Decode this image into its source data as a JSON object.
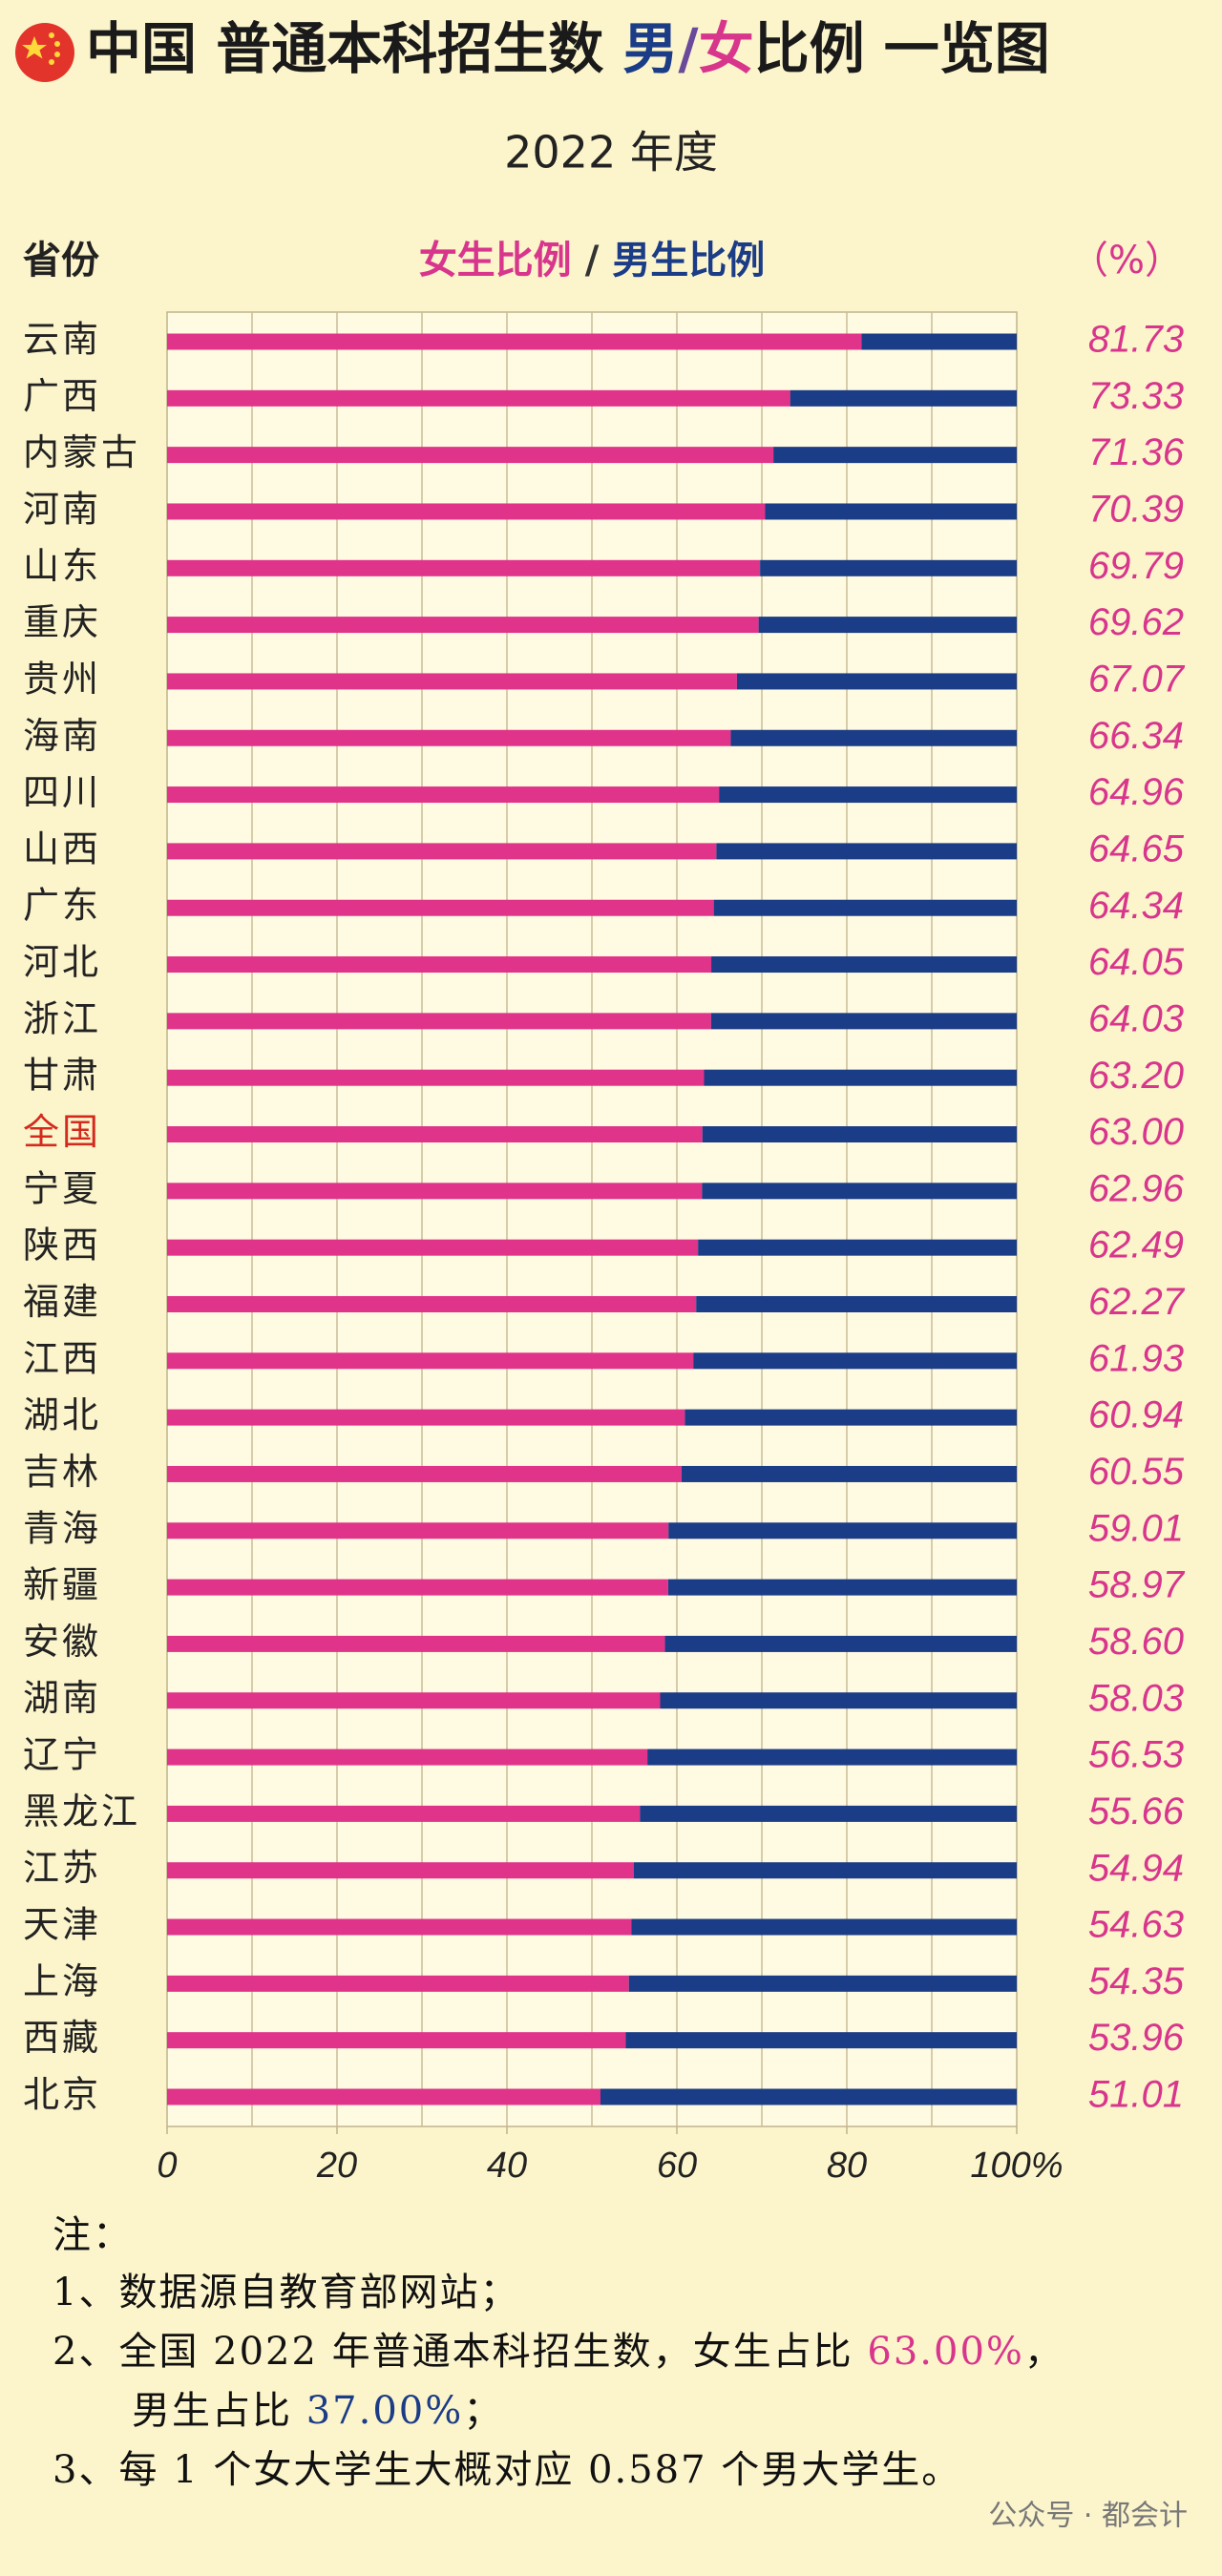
{
  "chart_data": {
    "type": "stacked-bar-horizontal",
    "title_parts": [
      "中国 普通本科招生数 ",
      "男",
      "/",
      "女",
      "比例 一览图"
    ],
    "subtitle": "2022 年度",
    "category_header": "省份",
    "legend_separator": "/",
    "unit_label": "（%）",
    "categories": [
      "云南",
      "广西",
      "内蒙古",
      "河南",
      "山东",
      "重庆",
      "贵州",
      "海南",
      "四川",
      "山西",
      "广东",
      "河北",
      "浙江",
      "甘肃",
      "全国",
      "宁夏",
      "陕西",
      "福建",
      "江西",
      "湖北",
      "吉林",
      "青海",
      "新疆",
      "安徽",
      "湖南",
      "辽宁",
      "黑龙江",
      "江苏",
      "天津",
      "上海",
      "西藏",
      "北京"
    ],
    "highlight": {
      "index": 14,
      "color": "#d42a1e"
    },
    "series": [
      {
        "name": "女生比例",
        "color": "#e0338a",
        "values": [
          81.73,
          73.33,
          71.36,
          70.39,
          69.79,
          69.62,
          67.07,
          66.34,
          64.96,
          64.65,
          64.34,
          64.05,
          64.03,
          63.2,
          63.0,
          62.96,
          62.49,
          62.27,
          61.93,
          60.94,
          60.55,
          59.01,
          58.97,
          58.6,
          58.03,
          56.53,
          55.66,
          54.94,
          54.63,
          54.35,
          53.96,
          51.01
        ],
        "value_labels": [
          "81.73",
          "73.33",
          "71.36",
          "70.39",
          "69.79",
          "69.62",
          "67.07",
          "66.34",
          "64.96",
          "64.65",
          "64.34",
          "64.05",
          "64.03",
          "63.20",
          "63.00",
          "62.96",
          "62.49",
          "62.27",
          "61.93",
          "60.94",
          "60.55",
          "59.01",
          "58.97",
          "58.60",
          "58.03",
          "56.53",
          "55.66",
          "54.94",
          "54.63",
          "54.35",
          "53.96",
          "51.01"
        ]
      },
      {
        "name": "男生比例",
        "color": "#1b3c86",
        "values": [
          18.27,
          26.67,
          28.64,
          29.61,
          30.21,
          30.38,
          32.93,
          33.66,
          35.04,
          35.35,
          35.66,
          35.95,
          35.97,
          36.8,
          37.0,
          37.04,
          37.51,
          37.73,
          38.07,
          39.06,
          39.45,
          40.99,
          41.03,
          41.4,
          41.97,
          43.47,
          44.34,
          45.06,
          45.37,
          45.65,
          46.04,
          48.99
        ]
      }
    ],
    "xlim": [
      0,
      100
    ],
    "xticks": [
      0,
      20,
      40,
      60,
      80,
      {
        "value": 100,
        "label": "100%"
      }
    ],
    "grid_ticks": [
      10,
      20,
      30,
      40,
      50,
      60,
      70,
      80,
      90
    ],
    "grid": true
  },
  "notes": {
    "heading": "注：",
    "lines": [
      [
        "1、数据源自教育部网站；"
      ],
      [
        "2、全国 2022 年普通本科招生数，女生占比 ",
        "63.00%",
        "，"
      ],
      [
        "男生占比 ",
        "37.00%",
        "；"
      ],
      [
        "3、每 1 个女大学生大概对应 0.587 个男大学生。"
      ]
    ]
  },
  "watermark": "公众号 · 都会计"
}
